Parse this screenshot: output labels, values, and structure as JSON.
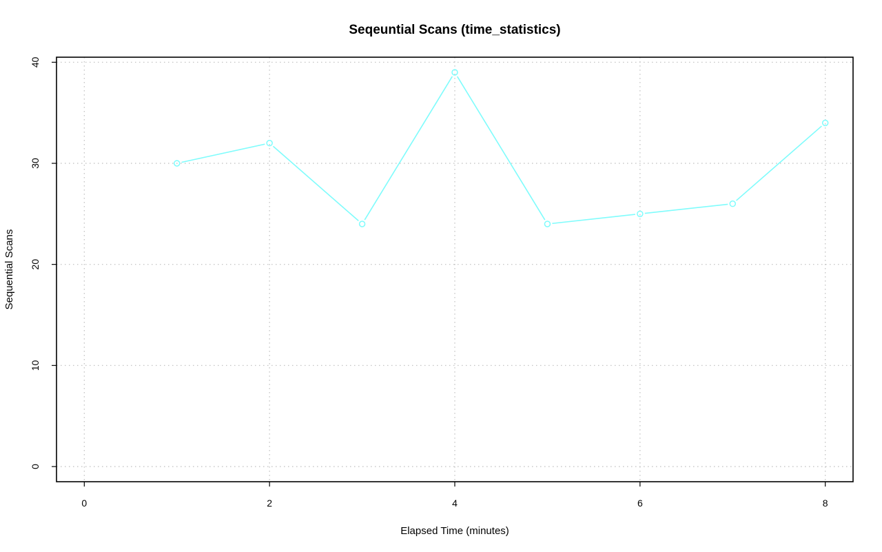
{
  "chart_data": {
    "type": "line",
    "title": "Seqeuntial Scans (time_statistics)",
    "xlabel": "Elapsed Time (minutes)",
    "ylabel": "Sequential Scans",
    "xlim": [
      -0.3,
      8.3
    ],
    "ylim": [
      -1.5,
      40.5
    ],
    "x_ticks": [
      0,
      2,
      4,
      6,
      8
    ],
    "y_ticks": [
      0,
      10,
      20,
      30,
      40
    ],
    "grid": true,
    "series": [
      {
        "color": "#7ffcfc",
        "marker": "open-circle",
        "x": [
          1,
          2,
          3,
          4,
          5,
          6,
          7,
          8
        ],
        "y": [
          30,
          32,
          24,
          39,
          24,
          25,
          26,
          34
        ]
      }
    ]
  }
}
